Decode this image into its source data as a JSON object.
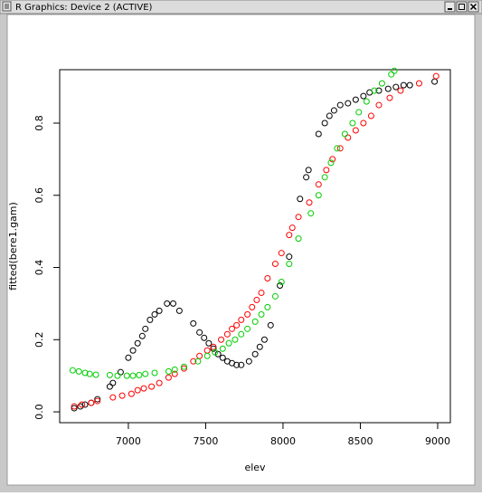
{
  "window": {
    "title": "R Graphics: Device 2 (ACTIVE)"
  },
  "chart_data": {
    "type": "scatter",
    "x_label": "elev",
    "y_label": "fitted(bere1.gam)",
    "xlim": [
      6556,
      9082
    ],
    "ylim": [
      -0.03,
      0.948
    ],
    "xticks": [
      7000,
      7500,
      8000,
      8500,
      9000
    ],
    "yticks": [
      {
        "value": 0,
        "label": "0.0"
      },
      0.2,
      0.4,
      0.6,
      0.8
    ],
    "series": [
      {
        "color": "#000000",
        "x": [
          6650,
          6690,
          6720,
          6760,
          6800,
          6880,
          6900,
          6950,
          7000,
          7030,
          7060,
          7090,
          7110,
          7140,
          7170,
          7200,
          7250,
          7290,
          7330,
          7420,
          7460,
          7490,
          7520,
          7550,
          7580,
          7610,
          7640,
          7670,
          7700,
          7730,
          7780,
          7820,
          7850,
          7880,
          7920,
          7980,
          8040,
          8110,
          8150,
          8165,
          8230,
          8270,
          8300,
          8330,
          8370,
          8420,
          8470,
          8520,
          8560,
          8620,
          8680,
          8730,
          8780,
          8820,
          8980
        ],
        "values": [
          0.01,
          0.015,
          0.02,
          0.025,
          0.035,
          0.07,
          0.08,
          0.11,
          0.15,
          0.17,
          0.19,
          0.21,
          0.23,
          0.255,
          0.27,
          0.28,
          0.3,
          0.3,
          0.28,
          0.245,
          0.22,
          0.205,
          0.19,
          0.175,
          0.16,
          0.15,
          0.14,
          0.135,
          0.13,
          0.13,
          0.14,
          0.16,
          0.18,
          0.2,
          0.24,
          0.35,
          0.43,
          0.59,
          0.65,
          0.67,
          0.77,
          0.8,
          0.82,
          0.835,
          0.85,
          0.855,
          0.865,
          0.875,
          0.885,
          0.89,
          0.895,
          0.9,
          0.905,
          0.905,
          0.915
        ]
      },
      {
        "color": "#ff0000",
        "x": [
          6650,
          6700,
          6760,
          6800,
          6900,
          6960,
          7020,
          7060,
          7100,
          7150,
          7200,
          7260,
          7300,
          7360,
          7420,
          7460,
          7510,
          7550,
          7600,
          7640,
          7670,
          7700,
          7730,
          7770,
          7800,
          7830,
          7860,
          7900,
          7950,
          7990,
          8040,
          8060,
          8100,
          8170,
          8230,
          8280,
          8320,
          8370,
          8420,
          8470,
          8520,
          8570,
          8620,
          8690,
          8760,
          8880,
          8990
        ],
        "values": [
          0.015,
          0.02,
          0.025,
          0.03,
          0.04,
          0.045,
          0.05,
          0.06,
          0.065,
          0.07,
          0.08,
          0.095,
          0.105,
          0.12,
          0.14,
          0.155,
          0.17,
          0.18,
          0.2,
          0.215,
          0.23,
          0.24,
          0.255,
          0.27,
          0.29,
          0.31,
          0.33,
          0.37,
          0.41,
          0.44,
          0.49,
          0.51,
          0.54,
          0.58,
          0.63,
          0.67,
          0.7,
          0.73,
          0.76,
          0.78,
          0.8,
          0.82,
          0.85,
          0.87,
          0.89,
          0.91,
          0.93
        ]
      },
      {
        "color": "#00cd00",
        "x": [
          6640,
          6680,
          6720,
          6750,
          6790,
          6880,
          6930,
          6990,
          7030,
          7070,
          7110,
          7170,
          7260,
          7300,
          7360,
          7450,
          7510,
          7560,
          7610,
          7650,
          7690,
          7730,
          7770,
          7820,
          7860,
          7900,
          7950,
          7990,
          8040,
          8100,
          8180,
          8230,
          8270,
          8310,
          8350,
          8400,
          8450,
          8490,
          8540,
          8590,
          8640,
          8700,
          8720
        ],
        "values": [
          0.115,
          0.112,
          0.108,
          0.105,
          0.103,
          0.102,
          0.1,
          0.1,
          0.1,
          0.102,
          0.105,
          0.108,
          0.112,
          0.117,
          0.125,
          0.14,
          0.155,
          0.165,
          0.175,
          0.19,
          0.2,
          0.215,
          0.23,
          0.25,
          0.27,
          0.29,
          0.32,
          0.36,
          0.41,
          0.48,
          0.55,
          0.6,
          0.65,
          0.69,
          0.73,
          0.77,
          0.8,
          0.83,
          0.86,
          0.89,
          0.91,
          0.935,
          0.945
        ]
      }
    ]
  }
}
